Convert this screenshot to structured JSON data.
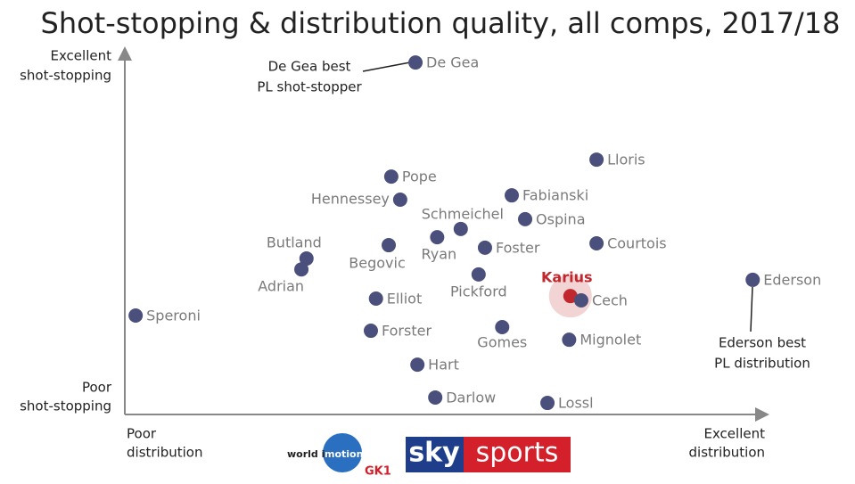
{
  "chart_data": {
    "type": "scatter",
    "title": "Shot-stopping & distribution quality, all comps, 2017/18",
    "y_label_top": [
      "Excellent",
      "shot-stopping"
    ],
    "y_label_bottom": [
      "Poor",
      "shot-stopping"
    ],
    "x_label_left": [
      "Poor",
      "distribution"
    ],
    "x_label_right": [
      "Excellent",
      "distribution"
    ],
    "labels": [
      "De Gea",
      "Lloris",
      "Pope",
      "Fabianski",
      "Hennessey",
      "Ospina",
      "Schmeichel",
      "Ryan",
      "Courtois",
      "Butland",
      "Begovic",
      "Foster",
      "Adrian",
      "Pickford",
      "Ederson",
      "Karius",
      "Cech",
      "Elliot",
      "Speroni",
      "Gomes",
      "Forster",
      "Mignolet",
      "Hart",
      "Darlow",
      "Lossl"
    ],
    "x": [
      45.6,
      74.0,
      41.8,
      60.7,
      43.2,
      62.8,
      52.7,
      49.0,
      74.0,
      28.5,
      41.4,
      56.5,
      27.7,
      55.5,
      98.5,
      69.9,
      71.6,
      39.4,
      1.7,
      59.2,
      38.6,
      69.7,
      45.9,
      48.7,
      66.3
    ],
    "y": [
      97.5,
      70.6,
      65.9,
      60.7,
      59.5,
      54.1,
      51.4,
      49.1,
      47.4,
      43.2,
      46.9,
      46.2,
      40.2,
      38.8,
      37.3,
      32.8,
      31.6,
      32.1,
      27.4,
      24.2,
      23.2,
      20.7,
      13.8,
      4.7,
      3.2
    ],
    "colors": [
      "#4a4f7c",
      "#4a4f7c",
      "#4a4f7c",
      "#4a4f7c",
      "#4a4f7c",
      "#4a4f7c",
      "#4a4f7c",
      "#4a4f7c",
      "#4a4f7c",
      "#4a4f7c",
      "#4a4f7c",
      "#4a4f7c",
      "#4a4f7c",
      "#4a4f7c",
      "#4a4f7c",
      "#c0282d",
      "#4a4f7c",
      "#4a4f7c",
      "#4a4f7c",
      "#4a4f7c",
      "#4a4f7c",
      "#4a4f7c",
      "#4a4f7c",
      "#4a4f7c",
      "#4a4f7c"
    ],
    "xlim": [
      0,
      100
    ],
    "ylim": [
      0,
      100
    ],
    "annotations": [
      [
        "De Gea best",
        "PL shot-stopper"
      ],
      [
        "Ederson best",
        "PL distribution"
      ]
    ],
    "logos": {
      "world": [
        "world in",
        "motion"
      ],
      "gk": "GK1",
      "sky": "sky",
      "sports": "sports"
    }
  }
}
